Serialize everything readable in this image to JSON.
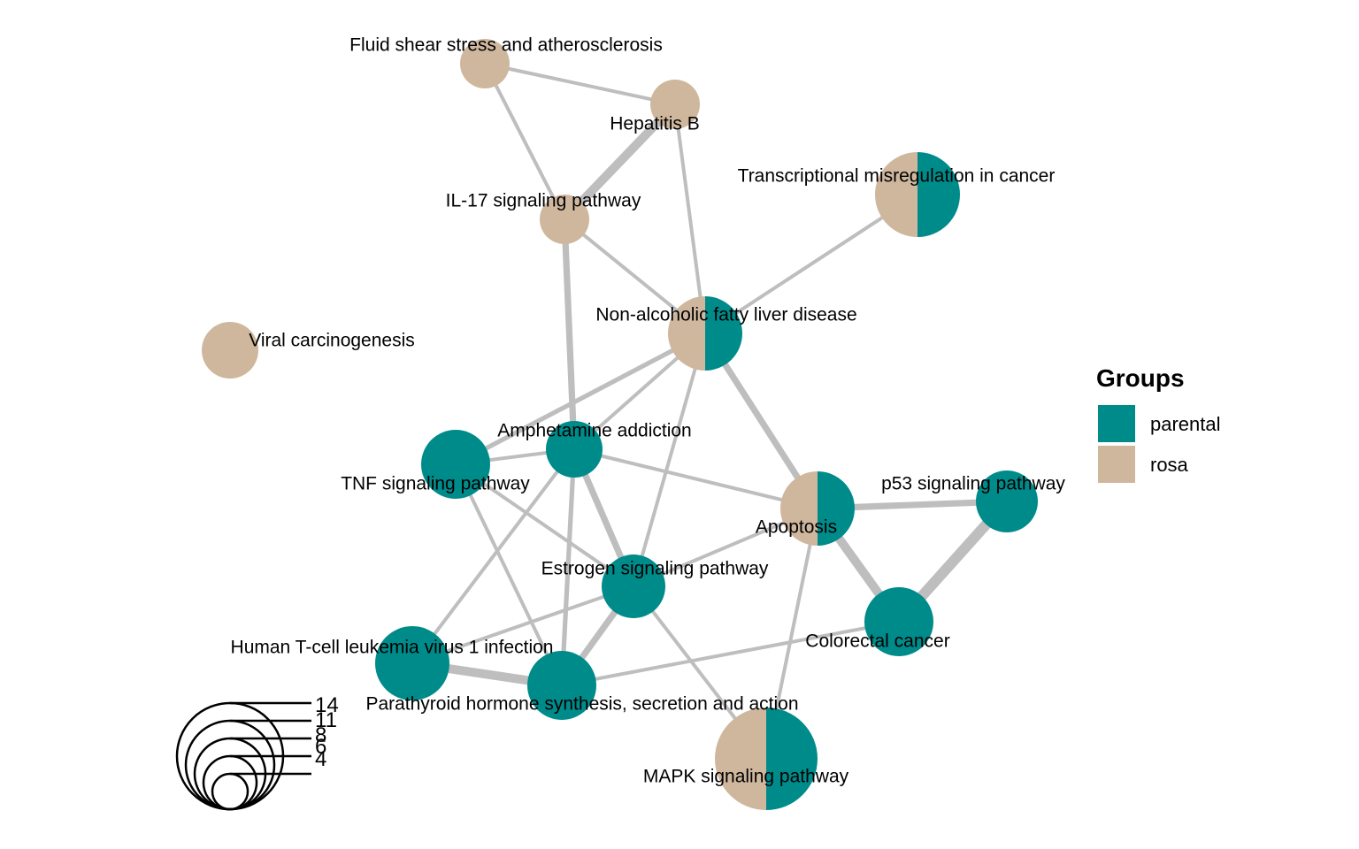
{
  "colors": {
    "parental": "#008B8B",
    "rosa": "#CFB79E",
    "edge": "#BEBEBE",
    "background": "#FFFFFF"
  },
  "legend": {
    "title": "Groups",
    "items": [
      {
        "label": "parental",
        "group": "parental"
      },
      {
        "label": "rosa",
        "group": "rosa"
      }
    ]
  },
  "size_legend": {
    "values": [
      "14",
      "11",
      "8",
      "6",
      "4"
    ]
  },
  "nodes": [
    {
      "id": "fluid",
      "label": "Fluid shear stress and atherosclerosis",
      "count": 6,
      "parental": 0,
      "rosa": 1
    },
    {
      "id": "hepb",
      "label": "Hepatitis B",
      "count": 6,
      "parental": 0,
      "rosa": 1
    },
    {
      "id": "transc",
      "label": "Transcriptional misregulation in cancer",
      "count": 8,
      "parental": 0.5,
      "rosa": 0.5
    },
    {
      "id": "il17",
      "label": "IL-17 signaling pathway",
      "count": 6,
      "parental": 0,
      "rosa": 1
    },
    {
      "id": "nafld",
      "label": "Non-alcoholic fatty liver disease",
      "count": 7,
      "parental": 0.5,
      "rosa": 0.5
    },
    {
      "id": "viral",
      "label": "Viral carcinogenesis",
      "count": 6,
      "parental": 0,
      "rosa": 1
    },
    {
      "id": "amph",
      "label": "Amphetamine addiction",
      "count": 6,
      "parental": 1,
      "rosa": 0
    },
    {
      "id": "tnf",
      "label": "TNF signaling pathway",
      "count": 7,
      "parental": 1,
      "rosa": 0
    },
    {
      "id": "apop",
      "label": "Apoptosis",
      "count": 7,
      "parental": 0.5,
      "rosa": 0.5
    },
    {
      "id": "p53",
      "label": "p53 signaling pathway",
      "count": 6,
      "parental": 1,
      "rosa": 0
    },
    {
      "id": "estro",
      "label": "Estrogen signaling pathway",
      "count": 6,
      "parental": 1,
      "rosa": 0
    },
    {
      "id": "colo",
      "label": "Colorectal cancer",
      "count": 7,
      "parental": 1,
      "rosa": 0
    },
    {
      "id": "htlv",
      "label": "Human T-cell leukemia virus 1 infection",
      "count": 7,
      "parental": 1,
      "rosa": 0
    },
    {
      "id": "pth",
      "label": "Parathyroid hormone synthesis, secretion and action",
      "count": 6,
      "parental": 1,
      "rosa": 0
    },
    {
      "id": "mapk",
      "label": "MAPK signaling pathway",
      "count": 11,
      "parental": 0.5,
      "rosa": 0.5
    }
  ],
  "edges": [
    {
      "source": "fluid",
      "target": "hepb",
      "weight": 1
    },
    {
      "source": "fluid",
      "target": "il17",
      "weight": 1
    },
    {
      "source": "hepb",
      "target": "il17",
      "weight": 2.5
    },
    {
      "source": "hepb",
      "target": "nafld",
      "weight": 1
    },
    {
      "source": "il17",
      "target": "nafld",
      "weight": 1
    },
    {
      "source": "il17",
      "target": "amph",
      "weight": 1.8
    },
    {
      "source": "transc",
      "target": "nafld",
      "weight": 1
    },
    {
      "source": "nafld",
      "target": "tnf",
      "weight": 1.3
    },
    {
      "source": "nafld",
      "target": "amph",
      "weight": 1
    },
    {
      "source": "nafld",
      "target": "estro",
      "weight": 1
    },
    {
      "source": "nafld",
      "target": "apop",
      "weight": 1.8
    },
    {
      "source": "tnf",
      "target": "amph",
      "weight": 1
    },
    {
      "source": "tnf",
      "target": "estro",
      "weight": 1
    },
    {
      "source": "tnf",
      "target": "pth",
      "weight": 1
    },
    {
      "source": "amph",
      "target": "apop",
      "weight": 1
    },
    {
      "source": "amph",
      "target": "estro",
      "weight": 1.8
    },
    {
      "source": "amph",
      "target": "htlv",
      "weight": 1
    },
    {
      "source": "amph",
      "target": "pth",
      "weight": 1.3
    },
    {
      "source": "apop",
      "target": "estro",
      "weight": 1
    },
    {
      "source": "apop",
      "target": "p53",
      "weight": 1.8
    },
    {
      "source": "apop",
      "target": "colo",
      "weight": 2.5
    },
    {
      "source": "apop",
      "target": "mapk",
      "weight": 1
    },
    {
      "source": "p53",
      "target": "colo",
      "weight": 3
    },
    {
      "source": "estro",
      "target": "htlv",
      "weight": 1
    },
    {
      "source": "estro",
      "target": "pth",
      "weight": 1.8
    },
    {
      "source": "estro",
      "target": "mapk",
      "weight": 1
    },
    {
      "source": "colo",
      "target": "pth",
      "weight": 1
    },
    {
      "source": "htlv",
      "target": "pth",
      "weight": 2.5
    }
  ]
}
